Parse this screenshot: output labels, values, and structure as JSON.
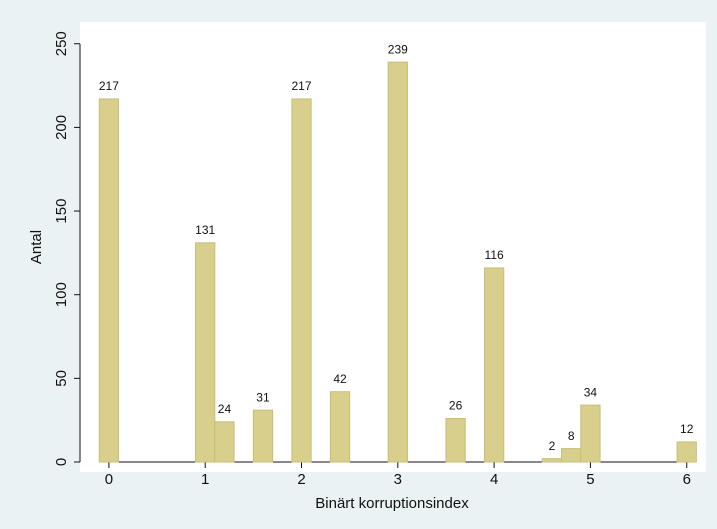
{
  "chart_data": {
    "type": "bar",
    "x_label": "Binärt korruptionsindex",
    "y_label": "Antal",
    "x": [
      0,
      1,
      1.2,
      1.6,
      2,
      2.4,
      3,
      3.6,
      4,
      4.6,
      4.8,
      5,
      6
    ],
    "values": [
      217,
      131,
      24,
      31,
      217,
      42,
      239,
      26,
      116,
      2,
      8,
      34,
      12
    ],
    "color": "#d9cf8c",
    "xlim": [
      -0.3,
      6.2
    ],
    "xticks": [
      0,
      1,
      2,
      3,
      4,
      5,
      6
    ],
    "ylim": [
      0,
      263
    ],
    "yticks": [
      0,
      50,
      100,
      150,
      200,
      250
    ],
    "grid": false
  }
}
